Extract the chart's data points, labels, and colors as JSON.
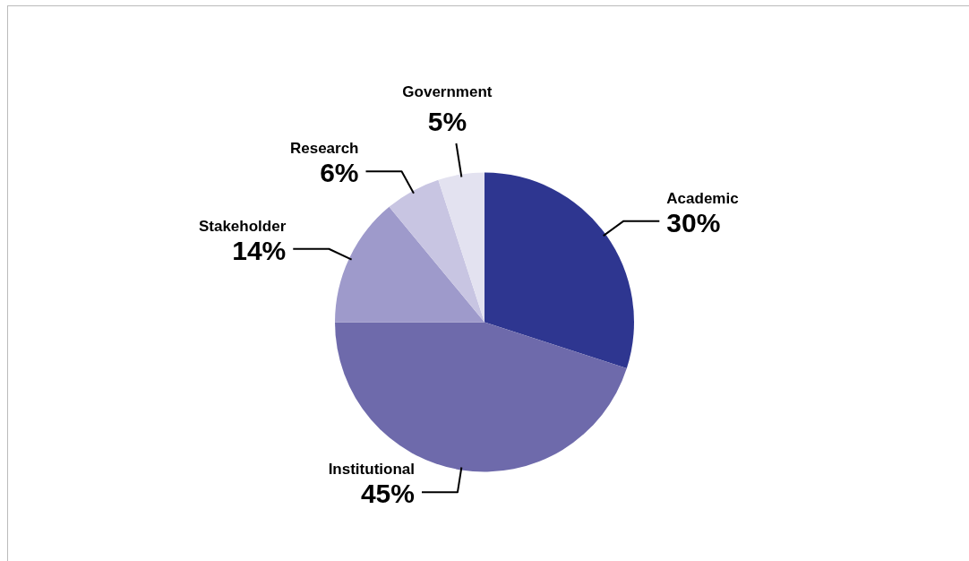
{
  "chart_data": {
    "type": "pie",
    "categories": [
      "Academic",
      "Institutional",
      "Stakeholder",
      "Research",
      "Government"
    ],
    "values": [
      30,
      45,
      14,
      6,
      5
    ],
    "colors": [
      "#2e3690",
      "#6e6aab",
      "#9e9acb",
      "#c8c5e2",
      "#e3e2f0"
    ],
    "value_labels": [
      "30%",
      "45%",
      "14%",
      "6%",
      "5%"
    ],
    "data_labels": true,
    "legend": false
  }
}
